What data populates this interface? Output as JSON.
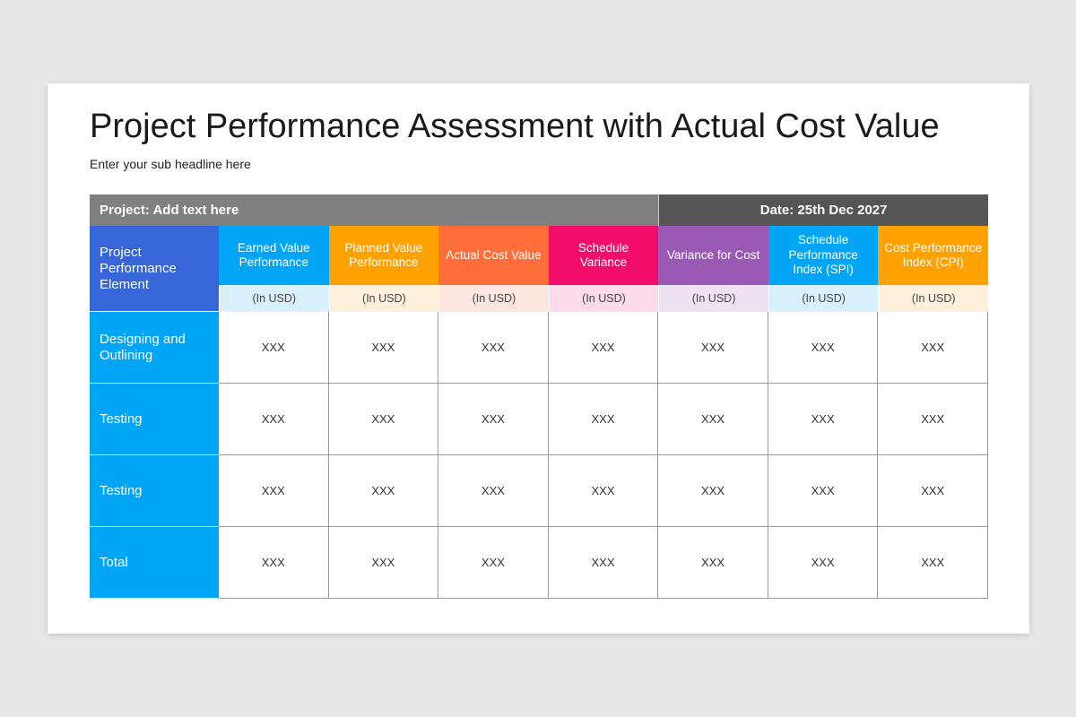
{
  "title": "Project Performance Assessment with Actual Cost Value",
  "subtitle": "Enter your sub headline here",
  "table": {
    "project_label": "Project: Add text here",
    "date_label": "Date: 25th Dec 2027",
    "row_header": "Project Performance Element",
    "columns": [
      {
        "label": "Earned Value Performance",
        "unit": "(In USD)",
        "color": "#00a5f5",
        "light": "#d8f0fb"
      },
      {
        "label": "Planned Value Performance",
        "unit": "(In USD)",
        "color": "#ffa200",
        "light": "#fff0dc"
      },
      {
        "label": "Actual Cost Value",
        "unit": "(In USD)",
        "color": "#ff6d38",
        "light": "#fde6df"
      },
      {
        "label": "Schedule Variance",
        "unit": "(In USD)",
        "color": "#f20d6b",
        "light": "#fddbe8"
      },
      {
        "label": "Variance for Cost",
        "unit": "(In USD)",
        "color": "#9b59b6",
        "light": "#efe3f3"
      },
      {
        "label": "Schedule Performance Index (SPI)",
        "unit": "(In USD)",
        "color": "#00a5f5",
        "light": "#d8f0fb"
      },
      {
        "label": "Cost Performance Index (CPI)",
        "unit": "(In USD)",
        "color": "#ffa200",
        "light": "#fff0dc"
      }
    ],
    "rows": [
      {
        "label": "Designing and Outlining",
        "values": [
          "XXX",
          "XXX",
          "XXX",
          "XXX",
          "XXX",
          "XXX",
          "XXX"
        ]
      },
      {
        "label": "Testing",
        "values": [
          "XXX",
          "XXX",
          "XXX",
          "XXX",
          "XXX",
          "XXX",
          "XXX"
        ]
      },
      {
        "label": "Testing",
        "values": [
          "XXX",
          "XXX",
          "XXX",
          "XXX",
          "XXX",
          "XXX",
          "XXX"
        ]
      },
      {
        "label": "Total",
        "values": [
          "XXX",
          "XXX",
          "XXX",
          "XXX",
          "XXX",
          "XXX",
          "XXX"
        ]
      }
    ]
  }
}
